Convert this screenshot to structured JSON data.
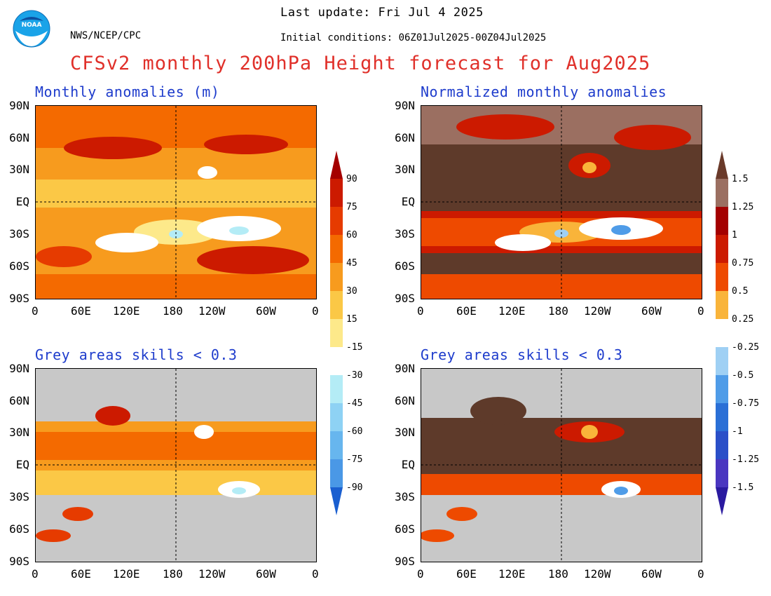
{
  "header": {
    "last_update": "Last update: Fri Jul 4 2025",
    "org": "NWS/NCEP/CPC",
    "initial_conditions": "Initial conditions: 06Z01Jul2025-00Z04Jul2025",
    "title": "CFSv2 monthly 200hPa Height forecast for Aug2025",
    "logo_text": "NOAA"
  },
  "panels": {
    "top_left": "Monthly anomalies (m)",
    "top_right": "Normalized monthly anomalies",
    "bottom_left": "Grey areas skills < 0.3",
    "bottom_right": "Grey areas skills < 0.3"
  },
  "axes": {
    "lat_labels": [
      "90N",
      "60N",
      "30N",
      "EQ",
      "30S",
      "60S",
      "90S"
    ],
    "lon_labels": [
      "0",
      "60E",
      "120E",
      "180",
      "120W",
      "60W",
      "0"
    ]
  },
  "colorbar_left": {
    "labels": [
      "90",
      "75",
      "60",
      "45",
      "30",
      "15",
      "-15",
      "-30",
      "-45",
      "-60",
      "-75",
      "-90"
    ],
    "colors": [
      "#a40000",
      "#cc1a00",
      "#e63b00",
      "#f46a00",
      "#f79b1e",
      "#fbc846",
      "#fde98a",
      "#ffffff",
      "#b4ecf6",
      "#8ed2f4",
      "#67b6ee",
      "#4a98e6",
      "#2f7cdc",
      "#1a5fd0"
    ]
  },
  "colorbar_right": {
    "labels": [
      "1.5",
      "1.25",
      "1",
      "0.75",
      "0.5",
      "0.25",
      "-0.25",
      "-0.5",
      "-0.75",
      "-1",
      "-1.25",
      "-1.5"
    ],
    "colors": [
      "#6a3a2a",
      "#9b6f61",
      "#a40000",
      "#cc1a00",
      "#ee4a00",
      "#f9b43a",
      "#ffffff",
      "#9fd0f4",
      "#4f9ce8",
      "#2a6fd6",
      "#2a4fc8",
      "#4a36c0",
      "#2a1aa0"
    ]
  },
  "fill_colors": {
    "grey": "#c8c8c8",
    "brown": "#5e3a2a",
    "orange_light": "#fbc846",
    "orange": "#f79b1e",
    "red": "#cc1a00",
    "darkred": "#a40000"
  }
}
